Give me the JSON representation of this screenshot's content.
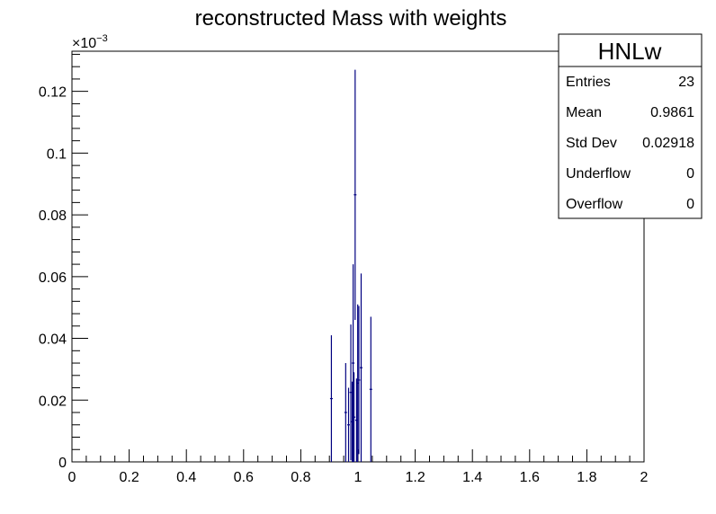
{
  "chart_data": {
    "type": "histogram",
    "title": "reconstructed Mass with weights",
    "xlabel": "",
    "ylabel": "",
    "xlim": [
      0,
      2
    ],
    "ylim": [
      0,
      0.000133
    ],
    "y_multiplier_label": "×10",
    "y_multiplier_exponent": "−3",
    "x_ticks": [
      "0",
      "0.2",
      "0.4",
      "0.6",
      "0.8",
      "1",
      "1.2",
      "1.4",
      "1.6",
      "1.8",
      "2"
    ],
    "y_ticks": [
      "0",
      "0.02",
      "0.04",
      "0.06",
      "0.08",
      "0.1",
      "0.12"
    ],
    "series": [
      {
        "color": "#000080",
        "x": [
          0.907,
          0.957,
          0.967,
          0.975,
          0.98,
          0.983,
          0.986,
          0.99,
          0.995,
          0.999,
          1.003,
          1.011,
          1.045
        ],
        "y": [
          2.05e-05,
          1.6e-05,
          1.2e-05,
          2.25e-05,
          1.3e-05,
          3.2e-05,
          1.45e-05,
          8.65e-05,
          1.35e-05,
          2.55e-05,
          2.65e-05,
          3.05e-05,
          2.35e-05
        ],
        "err": [
          2.05e-05,
          1.6e-05,
          1.2e-05,
          2.2e-05,
          1.3e-05,
          3.2e-05,
          1.45e-05,
          4.05e-05,
          1.35e-05,
          2.55e-05,
          2.4e-05,
          3.05e-05,
          2.35e-05
        ]
      }
    ]
  },
  "stats": {
    "name": "HNLw",
    "rows": [
      {
        "label": "Entries",
        "value": "23"
      },
      {
        "label": "Mean",
        "value": "0.9861"
      },
      {
        "label": "Std Dev",
        "value": "0.02918"
      },
      {
        "label": "Underflow",
        "value": "0"
      },
      {
        "label": "Overflow",
        "value": "0"
      }
    ]
  }
}
